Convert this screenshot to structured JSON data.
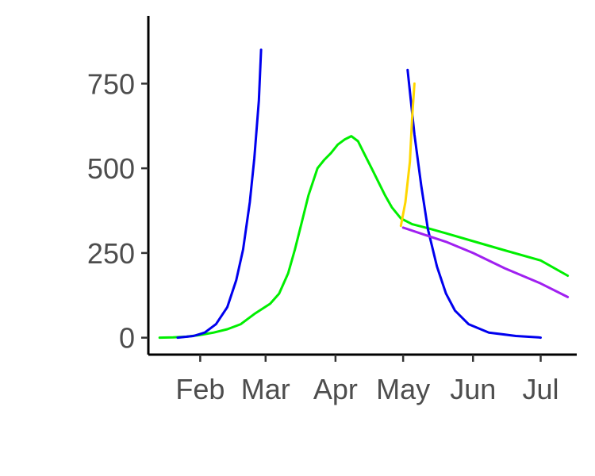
{
  "chart_data": {
    "type": "line",
    "title": "",
    "xlabel": "",
    "ylabel": "",
    "xlim": [
      "2020-01-09",
      "2020-07-17"
    ],
    "ylim": [
      -50,
      950
    ],
    "grid": false,
    "legend": "none",
    "x_ticks": [
      {
        "date": "2020-02-01",
        "label": "Feb"
      },
      {
        "date": "2020-03-01",
        "label": "Mar"
      },
      {
        "date": "2020-04-01",
        "label": "Apr"
      },
      {
        "date": "2020-05-01",
        "label": "May"
      },
      {
        "date": "2020-06-01",
        "label": "Jun"
      },
      {
        "date": "2020-07-01",
        "label": "Jul"
      }
    ],
    "y_ticks": [
      {
        "value": 0,
        "label": "0"
      },
      {
        "value": 250,
        "label": "250"
      },
      {
        "value": 500,
        "label": "500"
      },
      {
        "value": 750,
        "label": "750"
      }
    ],
    "series": [
      {
        "color": "#00ee00",
        "points": [
          [
            "2020-01-14",
            0
          ],
          [
            "2020-01-20",
            1
          ],
          [
            "2020-01-26",
            3
          ],
          [
            "2020-02-01",
            8
          ],
          [
            "2020-02-07",
            15
          ],
          [
            "2020-02-13",
            25
          ],
          [
            "2020-02-19",
            40
          ],
          [
            "2020-02-25",
            70
          ],
          [
            "2020-03-03",
            100
          ],
          [
            "2020-03-07",
            130
          ],
          [
            "2020-03-11",
            190
          ],
          [
            "2020-03-14",
            260
          ],
          [
            "2020-03-17",
            340
          ],
          [
            "2020-03-20",
            420
          ],
          [
            "2020-03-24",
            500
          ],
          [
            "2020-03-27",
            525
          ],
          [
            "2020-03-30",
            545
          ],
          [
            "2020-04-02",
            570
          ],
          [
            "2020-04-05",
            585
          ],
          [
            "2020-04-08",
            595
          ],
          [
            "2020-04-11",
            580
          ],
          [
            "2020-04-14",
            540
          ],
          [
            "2020-04-17",
            500
          ],
          [
            "2020-04-20",
            460
          ],
          [
            "2020-04-23",
            420
          ],
          [
            "2020-04-26",
            385
          ],
          [
            "2020-04-30",
            352
          ],
          [
            "2020-05-05",
            335
          ],
          [
            "2020-05-12",
            323
          ],
          [
            "2020-05-20",
            308
          ],
          [
            "2020-06-01",
            285
          ],
          [
            "2020-06-15",
            258
          ],
          [
            "2020-07-01",
            228
          ],
          [
            "2020-07-13",
            183
          ]
        ]
      },
      {
        "color": "#0000ee",
        "points": [
          [
            "2020-01-22",
            0
          ],
          [
            "2020-01-29",
            5
          ],
          [
            "2020-02-03",
            15
          ],
          [
            "2020-02-08",
            40
          ],
          [
            "2020-02-13",
            90
          ],
          [
            "2020-02-17",
            170
          ],
          [
            "2020-02-20",
            260
          ],
          [
            "2020-02-23",
            400
          ],
          [
            "2020-02-25",
            530
          ],
          [
            "2020-02-27",
            700
          ],
          [
            "2020-02-28",
            850
          ]
        ]
      },
      {
        "color": "#0000ee",
        "points": [
          [
            "2020-05-03",
            790
          ],
          [
            "2020-05-06",
            600
          ],
          [
            "2020-05-09",
            450
          ],
          [
            "2020-05-12",
            320
          ],
          [
            "2020-05-16",
            210
          ],
          [
            "2020-05-20",
            130
          ],
          [
            "2020-05-24",
            80
          ],
          [
            "2020-05-30",
            40
          ],
          [
            "2020-06-08",
            15
          ],
          [
            "2020-06-20",
            5
          ],
          [
            "2020-06-30",
            1
          ],
          [
            "2020-07-01",
            0
          ]
        ]
      },
      {
        "color": "#ffd700",
        "points": [
          [
            "2020-04-30",
            330
          ],
          [
            "2020-05-02",
            400
          ],
          [
            "2020-05-04",
            520
          ],
          [
            "2020-05-05",
            650
          ],
          [
            "2020-05-06",
            750
          ]
        ]
      },
      {
        "color": "#a020f0",
        "points": [
          [
            "2020-05-01",
            325
          ],
          [
            "2020-05-10",
            305
          ],
          [
            "2020-05-20",
            283
          ],
          [
            "2020-06-01",
            250
          ],
          [
            "2020-06-15",
            205
          ],
          [
            "2020-07-01",
            160
          ],
          [
            "2020-07-13",
            120
          ]
        ]
      }
    ]
  }
}
